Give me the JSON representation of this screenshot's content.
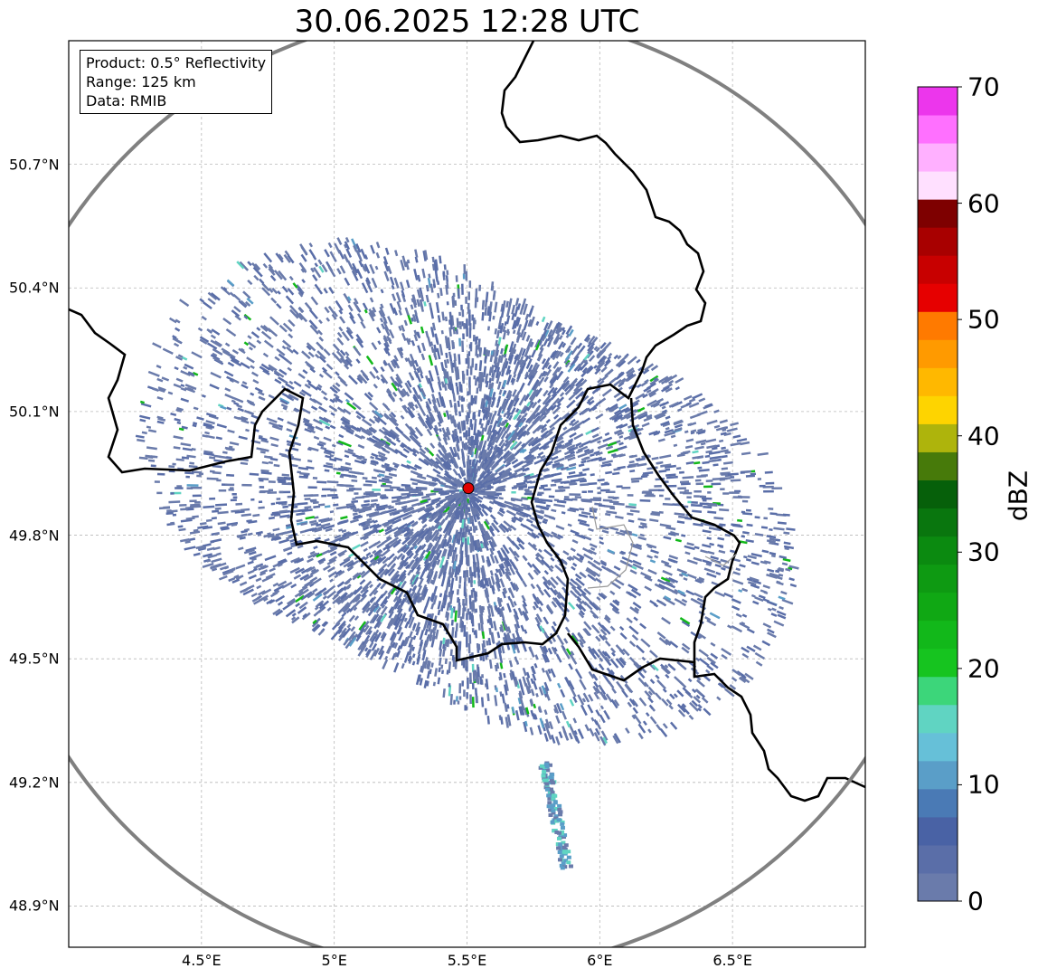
{
  "title": "30.06.2025 12:28 UTC",
  "info": {
    "product": "Product: 0.5° Reflectivity",
    "range": "Range: 125 km",
    "data": "Data: RMIB"
  },
  "map": {
    "lon_range": [
      4.0,
      7.0
    ],
    "lat_range": [
      48.8,
      51.0
    ],
    "radar_site": {
      "lon": 5.505,
      "lat": 49.914,
      "color": "#e00000"
    },
    "range_ring_color": "#808080",
    "border_color": "#000000",
    "gridlines": true,
    "xticks": [
      {
        "value": 4.5,
        "label": "4.5°E"
      },
      {
        "value": 5.0,
        "label": "5°E"
      },
      {
        "value": 5.5,
        "label": "5.5°E"
      },
      {
        "value": 6.0,
        "label": "6°E"
      },
      {
        "value": 6.5,
        "label": "6.5°E"
      }
    ],
    "yticks": [
      {
        "value": 48.9,
        "label": "48.9°N"
      },
      {
        "value": 49.2,
        "label": "49.2°N"
      },
      {
        "value": 49.5,
        "label": "49.5°N"
      },
      {
        "value": 49.8,
        "label": "49.8°N"
      },
      {
        "value": 50.1,
        "label": "50.1°N"
      },
      {
        "value": 50.4,
        "label": "50.4°N"
      },
      {
        "value": 50.7,
        "label": "50.7°N"
      }
    ]
  },
  "colorbar": {
    "label": "dBZ",
    "min": 0,
    "max": 70,
    "ticks": [
      "0",
      "10",
      "20",
      "30",
      "40",
      "50",
      "60",
      "70"
    ],
    "bins": [
      "#6a7bab",
      "#5a6ea8",
      "#4962a5",
      "#4a7ab5",
      "#5a9ec8",
      "#66c0d8",
      "#60d4c2",
      "#3cd67a",
      "#16c41f",
      "#12b81a",
      "#10a814",
      "#0e9a12",
      "#0b8a10",
      "#09760e",
      "#06600a",
      "#477a0a",
      "#aeb40c",
      "#fed400",
      "#ffb800",
      "#ff9a00",
      "#ff7a00",
      "#e60000",
      "#c80000",
      "#a80000",
      "#7e0000",
      "#ffe0ff",
      "#ffb0ff",
      "#ff70ff",
      "#ec36ec"
    ]
  }
}
